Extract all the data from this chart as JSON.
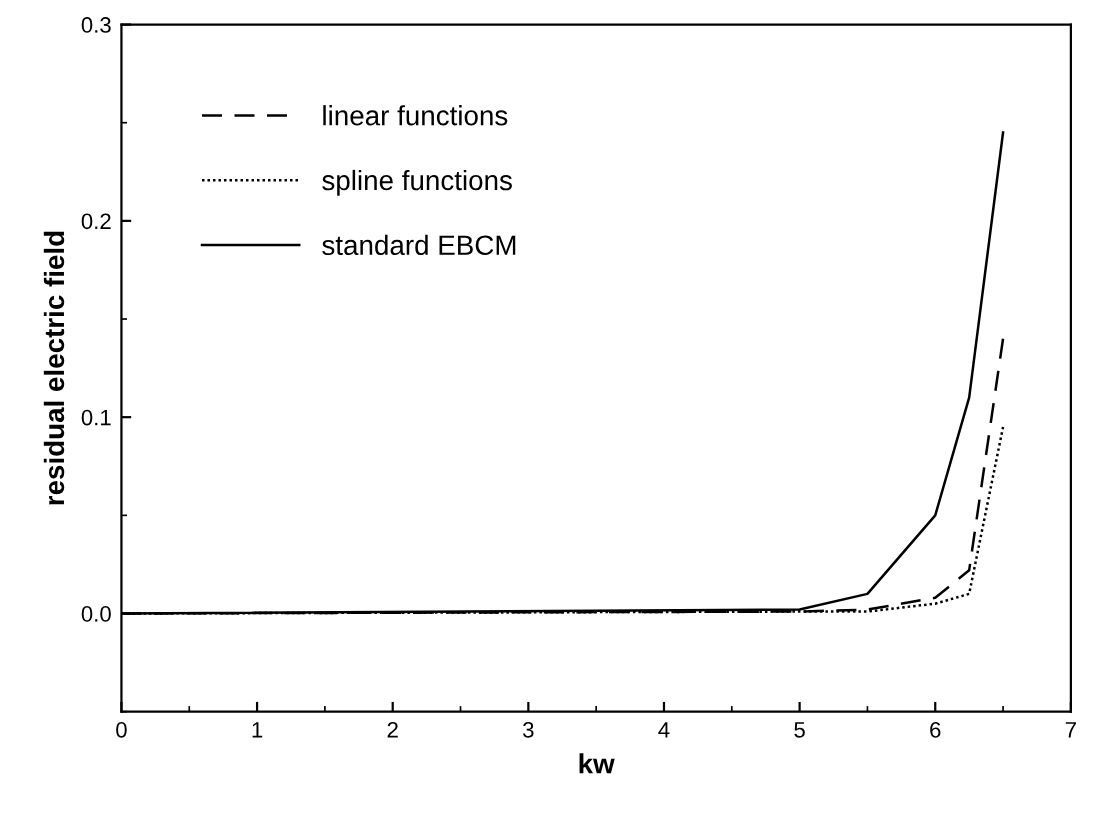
{
  "chart_data": {
    "type": "line",
    "xlabel": "kw",
    "ylabel": "residual electric field",
    "xlim": [
      0,
      7
    ],
    "xticks": [
      0,
      1,
      2,
      3,
      4,
      5,
      6,
      7
    ],
    "ylim": [
      -0.05,
      0.3
    ],
    "yticks": [
      {
        "value": 0,
        "label": "0.0"
      },
      0.1,
      0.2,
      0.3
    ],
    "legend": "top left",
    "grid": false,
    "series": [
      {
        "name": "linear functions",
        "color": "#000000",
        "line_style": "dashed",
        "x": [
          0,
          5,
          5.5,
          6,
          6.25,
          6.5
        ],
        "values": [
          0,
          0.001,
          0.002,
          0.008,
          0.022,
          0.14
        ]
      },
      {
        "name": "spline functions",
        "color": "#000000",
        "line_style": "dotted",
        "x": [
          0,
          5,
          5.5,
          6,
          6.25,
          6.5
        ],
        "values": [
          0,
          0.001,
          0.001,
          0.005,
          0.01,
          0.095
        ]
      },
      {
        "name": "standard EBCM",
        "color": "#000000",
        "line_style": "solid",
        "x": [
          0,
          5,
          5.5,
          6,
          6.25,
          6.5
        ],
        "values": [
          0,
          0.002,
          0.01,
          0.05,
          0.11,
          0.245
        ]
      }
    ]
  }
}
